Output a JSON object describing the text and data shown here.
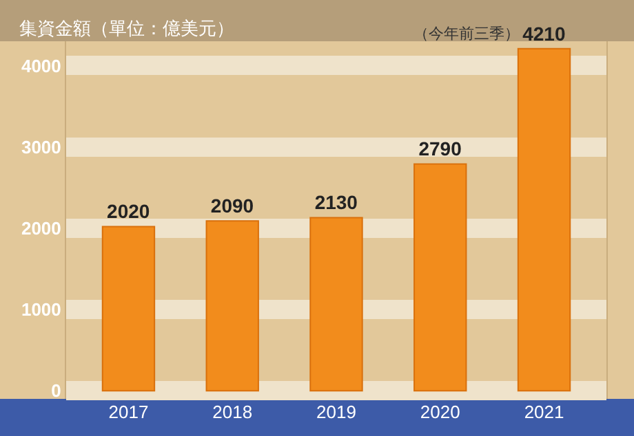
{
  "chart_data": {
    "type": "bar",
    "title": "集資金額（單位：億美元）",
    "categories": [
      "2017",
      "2018",
      "2019",
      "2020",
      "2021"
    ],
    "values": [
      2020,
      2090,
      2130,
      2790,
      4210
    ],
    "color": "#f28c1c",
    "ylim": [
      -100,
      4300
    ],
    "yticks": [
      0,
      1000,
      2000,
      3000,
      4000
    ],
    "grid": "y",
    "data_labels": true,
    "annotations": [
      {
        "text": "（今年前三季）",
        "x": "2021",
        "y": 4210
      }
    ]
  }
}
